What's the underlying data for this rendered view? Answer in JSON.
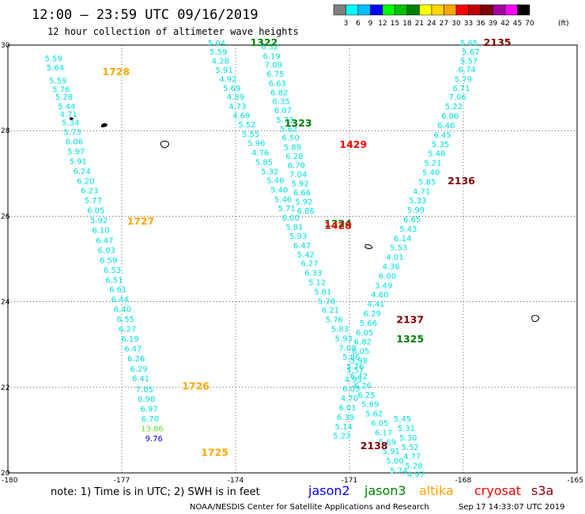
{
  "header": {
    "title": "12:00 – 23:59 UTC 09/16/2019",
    "subtitle": "12 hour collection of altimeter wave heights"
  },
  "legend": {
    "unit": "(ft)",
    "ticks": [
      "3",
      "6",
      "9",
      "12",
      "15",
      "18",
      "21",
      "24",
      "27",
      "30",
      "33",
      "36",
      "39",
      "42",
      "45",
      "70"
    ],
    "colors": [
      "#7f7f7f",
      "#00ffff",
      "#00bfff",
      "#0000ff",
      "#00ff00",
      "#00c000",
      "#008000",
      "#ffff00",
      "#ffd700",
      "#ffa500",
      "#ff0000",
      "#c00000",
      "#800000",
      "#a000a0",
      "#ff00ff",
      "#000000"
    ]
  },
  "footer": {
    "note": "note:  1) Time is in UTC;  2) SWH is in feet",
    "satellites": [
      {
        "name": "jason2",
        "color": "#0000ff"
      },
      {
        "name": "jason3",
        "color": "#008000"
      },
      {
        "name": "altika",
        "color": "#ffa500"
      },
      {
        "name": "cryosat",
        "color": "#ff0000"
      },
      {
        "name": "s3a",
        "color": "#800000"
      }
    ],
    "credit": "NOAA/NESDIS Center for Satellite Applications and Research",
    "timestamp": "Sep 17 14:33:07 UTC 2019"
  },
  "chart_data": {
    "type": "scatter",
    "title": "12:00 – 23:59 UTC 09/16/2019",
    "subtitle": "12 hour collection of altimeter wave heights",
    "x_ticks": [
      "-180",
      "-177",
      "-174",
      "-171",
      "-168",
      "-165"
    ],
    "y_ticks": [
      "30",
      "28",
      "26",
      "24",
      "22",
      "20"
    ],
    "xlim": [
      -180,
      -165
    ],
    "ylim": [
      20,
      30
    ],
    "grid": true,
    "tracks": [
      {
        "name": "altika",
        "color": "#00e0e0",
        "points": [
          {
            "lon": -178.8,
            "lat": 29.62,
            "v": "5.59"
          },
          {
            "lon": -178.75,
            "lat": 29.41,
            "v": "5.64"
          },
          {
            "lon": -178.68,
            "lat": 29.1,
            "v": "5.59"
          },
          {
            "lon": -178.6,
            "lat": 28.9,
            "v": "5.76"
          },
          {
            "lon": -178.52,
            "lat": 28.72,
            "v": "5.28"
          },
          {
            "lon": -178.45,
            "lat": 28.5,
            "v": "5.44"
          },
          {
            "lon": -178.4,
            "lat": 28.32,
            "v": "4.71"
          },
          {
            "lon": -178.35,
            "lat": 28.12,
            "v": "5.34"
          },
          {
            "lon": -178.3,
            "lat": 27.9,
            "v": "5.73"
          },
          {
            "lon": -178.25,
            "lat": 27.68,
            "v": "6.06"
          },
          {
            "lon": -178.2,
            "lat": 27.45,
            "v": "5.97"
          },
          {
            "lon": -178.15,
            "lat": 27.22,
            "v": "5.91"
          },
          {
            "lon": -178.05,
            "lat": 26.99,
            "v": "6.24"
          },
          {
            "lon": -177.95,
            "lat": 26.76,
            "v": "6.20"
          },
          {
            "lon": -177.85,
            "lat": 26.53,
            "v": "6.23"
          },
          {
            "lon": -177.75,
            "lat": 26.3,
            "v": "5.77"
          },
          {
            "lon": -177.68,
            "lat": 26.07,
            "v": "6.05"
          },
          {
            "lon": -177.6,
            "lat": 25.84,
            "v": "5.92"
          },
          {
            "lon": -177.55,
            "lat": 25.61,
            "v": "6.10"
          },
          {
            "lon": -177.45,
            "lat": 25.37,
            "v": "6.47"
          },
          {
            "lon": -177.4,
            "lat": 25.14,
            "v": "6.03"
          },
          {
            "lon": -177.35,
            "lat": 24.91,
            "v": "6.59"
          },
          {
            "lon": -177.25,
            "lat": 24.68,
            "v": "6.53"
          },
          {
            "lon": -177.2,
            "lat": 24.45,
            "v": "6.51"
          },
          {
            "lon": -177.1,
            "lat": 24.22,
            "v": "6.61"
          },
          {
            "lon": -177.05,
            "lat": 23.99,
            "v": "6.44"
          },
          {
            "lon": -176.98,
            "lat": 23.76,
            "v": "6.40"
          },
          {
            "lon": -176.9,
            "lat": 23.53,
            "v": "6.55"
          },
          {
            "lon": -176.85,
            "lat": 23.3,
            "v": "6.27"
          },
          {
            "lon": -176.78,
            "lat": 23.07,
            "v": "6.19"
          },
          {
            "lon": -176.7,
            "lat": 22.84,
            "v": "6.47"
          },
          {
            "lon": -176.62,
            "lat": 22.61,
            "v": "6.26"
          },
          {
            "lon": -176.55,
            "lat": 22.37,
            "v": "6.29"
          },
          {
            "lon": -176.5,
            "lat": 22.14,
            "v": "6.41"
          },
          {
            "lon": -176.4,
            "lat": 21.89,
            "v": "7.05"
          },
          {
            "lon": -176.35,
            "lat": 21.66,
            "v": "6.98"
          },
          {
            "lon": -176.28,
            "lat": 21.43,
            "v": "6.97"
          },
          {
            "lon": -176.25,
            "lat": 21.2,
            "v": "6.70"
          },
          {
            "lon": -176.2,
            "lat": 20.97,
            "v": "13.86",
            "color": "#66dd33"
          },
          {
            "lon": -176.15,
            "lat": 20.74,
            "v": "9.76",
            "color": "#0000dd"
          }
        ]
      },
      {
        "name": "jason3",
        "color": "#00e0e0",
        "points": [
          {
            "lon": -174.5,
            "lat": 29.98,
            "v": "5.04"
          },
          {
            "lon": -174.45,
            "lat": 29.78,
            "v": "5.59"
          },
          {
            "lon": -174.4,
            "lat": 29.57,
            "v": "4.28"
          },
          {
            "lon": -174.3,
            "lat": 29.35,
            "v": "5.91"
          },
          {
            "lon": -174.2,
            "lat": 29.14,
            "v": "4.92"
          },
          {
            "lon": -174.1,
            "lat": 28.93,
            "v": "5.69"
          },
          {
            "lon": -174.0,
            "lat": 28.72,
            "v": "4.89"
          },
          {
            "lon": -173.95,
            "lat": 28.5,
            "v": "4.73"
          },
          {
            "lon": -173.85,
            "lat": 28.29,
            "v": "4.69"
          },
          {
            "lon": -173.7,
            "lat": 28.08,
            "v": "5.52"
          },
          {
            "lon": -173.6,
            "lat": 27.86,
            "v": "5.55"
          },
          {
            "lon": -173.45,
            "lat": 27.64,
            "v": "5.96"
          },
          {
            "lon": -173.35,
            "lat": 27.42,
            "v": "4.76"
          },
          {
            "lon": -173.25,
            "lat": 27.2,
            "v": "5.85"
          },
          {
            "lon": -173.1,
            "lat": 26.98,
            "v": "5.32"
          },
          {
            "lon": -172.95,
            "lat": 26.77,
            "v": "5.46"
          },
          {
            "lon": -172.85,
            "lat": 26.55,
            "v": "5.40"
          },
          {
            "lon": -172.75,
            "lat": 26.33,
            "v": "5.46"
          },
          {
            "lon": -172.65,
            "lat": 26.12,
            "v": "5.71"
          },
          {
            "lon": -172.55,
            "lat": 25.9,
            "v": "6.00"
          },
          {
            "lon": -172.45,
            "lat": 25.68,
            "v": "5.81"
          },
          {
            "lon": -172.35,
            "lat": 25.47,
            "v": "5.93"
          },
          {
            "lon": -172.25,
            "lat": 25.25,
            "v": "6.47"
          },
          {
            "lon": -172.15,
            "lat": 25.04,
            "v": "5.42"
          },
          {
            "lon": -172.05,
            "lat": 24.83,
            "v": "6.27"
          },
          {
            "lon": -171.95,
            "lat": 24.61,
            "v": "6.33"
          },
          {
            "lon": -171.85,
            "lat": 24.39,
            "v": "5.12"
          },
          {
            "lon": -171.7,
            "lat": 24.17,
            "v": "5.81"
          },
          {
            "lon": -171.6,
            "lat": 23.95,
            "v": "5.78"
          },
          {
            "lon": -171.5,
            "lat": 23.74,
            "v": "6.21"
          },
          {
            "lon": -171.4,
            "lat": 23.52,
            "v": "5.76"
          },
          {
            "lon": -171.25,
            "lat": 23.3,
            "v": "5.83"
          },
          {
            "lon": -171.15,
            "lat": 23.08,
            "v": "5.93"
          },
          {
            "lon": -171.05,
            "lat": 22.86,
            "v": "7.08"
          },
          {
            "lon": -170.95,
            "lat": 22.64,
            "v": "5.86"
          },
          {
            "lon": -170.85,
            "lat": 22.42,
            "v": "5.76"
          },
          {
            "lon": -170.75,
            "lat": 22.2,
            "v": "6.42"
          },
          {
            "lon": -170.65,
            "lat": 21.98,
            "v": "6.26"
          },
          {
            "lon": -170.55,
            "lat": 21.76,
            "v": "6.25"
          },
          {
            "lon": -170.45,
            "lat": 21.54,
            "v": "5.69"
          },
          {
            "lon": -170.35,
            "lat": 21.32,
            "v": "5.62"
          },
          {
            "lon": -170.2,
            "lat": 21.1,
            "v": "6.05"
          },
          {
            "lon": -170.1,
            "lat": 20.88,
            "v": "6.17"
          },
          {
            "lon": -170.0,
            "lat": 20.66,
            "v": "5.69"
          },
          {
            "lon": -169.9,
            "lat": 20.44,
            "v": "5.91"
          },
          {
            "lon": -169.8,
            "lat": 20.22,
            "v": "5.00"
          },
          {
            "lon": -169.7,
            "lat": 19.99,
            "v": "5.74"
          }
        ]
      },
      {
        "name": "cryosat",
        "color": "#00e0e0",
        "points": [
          {
            "lon": -173.1,
            "lat": 29.9,
            "v": "6.32"
          },
          {
            "lon": -173.05,
            "lat": 29.68,
            "v": "6.19"
          },
          {
            "lon": -173.0,
            "lat": 29.47,
            "v": "7.09"
          },
          {
            "lon": -172.95,
            "lat": 29.26,
            "v": "6.75"
          },
          {
            "lon": -172.9,
            "lat": 29.04,
            "v": "6.63"
          },
          {
            "lon": -172.85,
            "lat": 28.83,
            "v": "6.82"
          },
          {
            "lon": -172.8,
            "lat": 28.62,
            "v": "6.35"
          },
          {
            "lon": -172.75,
            "lat": 28.41,
            "v": "6.07"
          },
          {
            "lon": -172.7,
            "lat": 28.19,
            "v": "5.73"
          },
          {
            "lon": -172.6,
            "lat": 27.98,
            "v": "5.62"
          },
          {
            "lon": -172.55,
            "lat": 27.77,
            "v": "6.50"
          },
          {
            "lon": -172.5,
            "lat": 27.55,
            "v": "5.89"
          },
          {
            "lon": -172.45,
            "lat": 27.34,
            "v": "6.28"
          },
          {
            "lon": -172.4,
            "lat": 27.13,
            "v": "6.70"
          },
          {
            "lon": -172.35,
            "lat": 26.91,
            "v": "7.04"
          },
          {
            "lon": -172.3,
            "lat": 26.7,
            "v": "5.92"
          },
          {
            "lon": -172.25,
            "lat": 26.49,
            "v": "6.66"
          },
          {
            "lon": -172.2,
            "lat": 26.28,
            "v": "5.92"
          },
          {
            "lon": -172.15,
            "lat": 26.06,
            "v": "6.86"
          }
        ]
      },
      {
        "name": "s3a",
        "color": "#00e0e0",
        "points": [
          {
            "lon": -167.85,
            "lat": 29.98,
            "v": "5.65"
          },
          {
            "lon": -167.8,
            "lat": 29.78,
            "v": "5.67"
          },
          {
            "lon": -167.85,
            "lat": 29.57,
            "v": "5.57"
          },
          {
            "lon": -167.9,
            "lat": 29.36,
            "v": "6.74"
          },
          {
            "lon": -168.0,
            "lat": 29.14,
            "v": "5.79"
          },
          {
            "lon": -168.05,
            "lat": 28.93,
            "v": "6.71"
          },
          {
            "lon": -168.15,
            "lat": 28.72,
            "v": "7.06"
          },
          {
            "lon": -168.25,
            "lat": 28.5,
            "v": "5.22"
          },
          {
            "lon": -168.35,
            "lat": 28.28,
            "v": "6.06"
          },
          {
            "lon": -168.45,
            "lat": 28.06,
            "v": "6.46"
          },
          {
            "lon": -168.55,
            "lat": 27.84,
            "v": "6.45"
          },
          {
            "lon": -168.6,
            "lat": 27.62,
            "v": "5.35"
          },
          {
            "lon": -168.7,
            "lat": 27.4,
            "v": "5.48"
          },
          {
            "lon": -168.8,
            "lat": 27.18,
            "v": "5.21"
          },
          {
            "lon": -168.85,
            "lat": 26.96,
            "v": "5.40"
          },
          {
            "lon": -168.95,
            "lat": 26.74,
            "v": "5.85"
          },
          {
            "lon": -169.1,
            "lat": 26.52,
            "v": "4.71"
          },
          {
            "lon": -169.2,
            "lat": 26.3,
            "v": "5.33"
          },
          {
            "lon": -169.25,
            "lat": 26.08,
            "v": "5.99"
          },
          {
            "lon": -169.35,
            "lat": 25.86,
            "v": "6.65"
          },
          {
            "lon": -169.45,
            "lat": 25.64,
            "v": "5.43"
          },
          {
            "lon": -169.6,
            "lat": 25.42,
            "v": "6.14"
          },
          {
            "lon": -169.7,
            "lat": 25.2,
            "v": "5.53"
          },
          {
            "lon": -169.8,
            "lat": 24.98,
            "v": "4.01"
          },
          {
            "lon": -169.9,
            "lat": 24.76,
            "v": "4.36"
          },
          {
            "lon": -170.0,
            "lat": 24.54,
            "v": "6.00"
          },
          {
            "lon": -170.1,
            "lat": 24.32,
            "v": "3.49"
          },
          {
            "lon": -170.2,
            "lat": 24.1,
            "v": "4.60"
          },
          {
            "lon": -170.3,
            "lat": 23.88,
            "v": "4.41"
          },
          {
            "lon": -170.4,
            "lat": 23.66,
            "v": "6.29"
          },
          {
            "lon": -170.5,
            "lat": 23.44,
            "v": "5.66"
          },
          {
            "lon": -170.6,
            "lat": 23.22,
            "v": "6.05"
          },
          {
            "lon": -170.65,
            "lat": 23.0,
            "v": "6.82"
          },
          {
            "lon": -170.7,
            "lat": 22.78,
            "v": "6.05"
          },
          {
            "lon": -170.75,
            "lat": 22.56,
            "v": "5.98"
          },
          {
            "lon": -170.85,
            "lat": 22.34,
            "v": "5.57"
          },
          {
            "lon": -170.9,
            "lat": 22.12,
            "v": "4.95"
          },
          {
            "lon": -170.95,
            "lat": 21.9,
            "v": "6.03"
          },
          {
            "lon": -171.0,
            "lat": 21.68,
            "v": "4.70"
          },
          {
            "lon": -171.05,
            "lat": 21.46,
            "v": "6.01"
          },
          {
            "lon": -171.1,
            "lat": 21.24,
            "v": "6.39"
          },
          {
            "lon": -171.15,
            "lat": 21.02,
            "v": "5.14"
          },
          {
            "lon": -171.2,
            "lat": 20.8,
            "v": "5.23"
          }
        ]
      },
      {
        "name": "s3a-lower",
        "color": "#00e0e0",
        "points": [
          {
            "lon": -169.6,
            "lat": 21.2,
            "v": "5.45"
          },
          {
            "lon": -169.5,
            "lat": 20.98,
            "v": "5.31"
          },
          {
            "lon": -169.45,
            "lat": 20.76,
            "v": "5.30"
          },
          {
            "lon": -169.4,
            "lat": 20.54,
            "v": "5.52"
          },
          {
            "lon": -169.35,
            "lat": 20.32,
            "v": "4.77"
          },
          {
            "lon": -169.3,
            "lat": 20.1,
            "v": "5.28"
          },
          {
            "lon": -169.25,
            "lat": 19.9,
            "v": "4.97"
          }
        ]
      }
    ],
    "passes": [
      {
        "id": "1728",
        "lon": -177.15,
        "lat": 29.3,
        "color": "#ffa500"
      },
      {
        "id": "1727",
        "lon": -176.5,
        "lat": 25.8,
        "color": "#ffa500"
      },
      {
        "id": "1726",
        "lon": -175.05,
        "lat": 21.95,
        "color": "#ffa500"
      },
      {
        "id": "1725",
        "lon": -174.55,
        "lat": 20.4,
        "color": "#ffa500"
      },
      {
        "id": "1322",
        "lon": -173.25,
        "lat": 29.98,
        "color": "#008000"
      },
      {
        "id": "1323",
        "lon": -172.35,
        "lat": 28.1,
        "color": "#008000"
      },
      {
        "id": "1324",
        "lon": -171.3,
        "lat": 25.75,
        "color": "#008000"
      },
      {
        "id": "1325",
        "lon": -169.4,
        "lat": 23.05,
        "color": "#008000"
      },
      {
        "id": "1429",
        "lon": -170.9,
        "lat": 27.6,
        "color": "#ff0000"
      },
      {
        "id": "1428",
        "lon": -171.3,
        "lat": 25.7,
        "color": "#ff0000"
      },
      {
        "id": "2135",
        "lon": -167.1,
        "lat": 29.98,
        "color": "#800000"
      },
      {
        "id": "2136",
        "lon": -168.05,
        "lat": 26.75,
        "color": "#800000"
      },
      {
        "id": "2137",
        "lon": -169.4,
        "lat": 23.5,
        "color": "#800000"
      },
      {
        "id": "2138",
        "lon": -170.35,
        "lat": 20.55,
        "color": "#800000"
      }
    ]
  }
}
